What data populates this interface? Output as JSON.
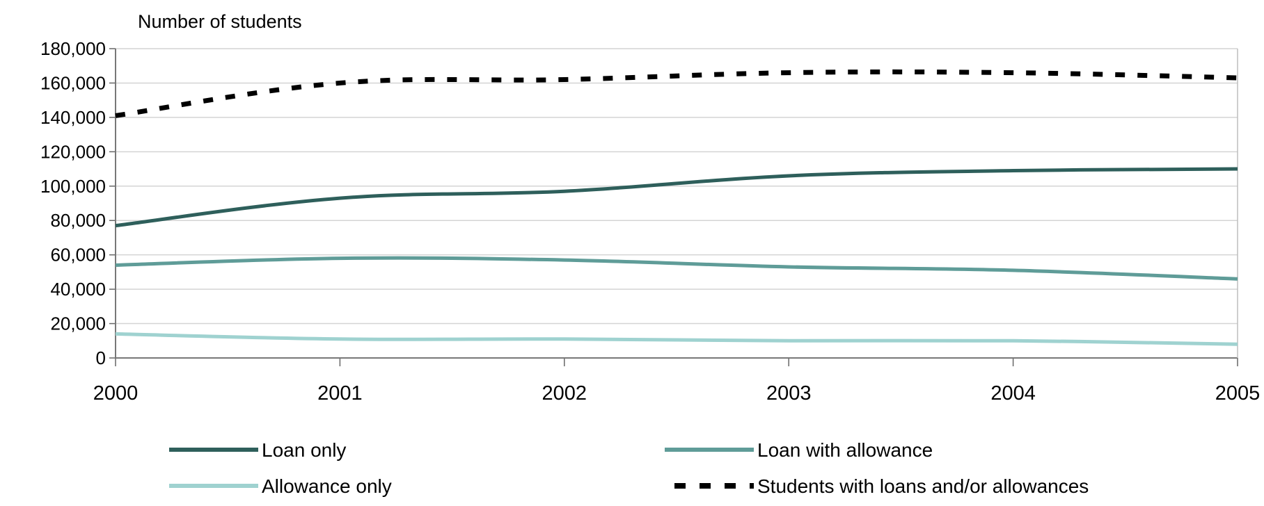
{
  "chart_data": {
    "type": "line",
    "ylabel": "Number of students",
    "xlabel": "",
    "x": [
      2000,
      2001,
      2002,
      2003,
      2004,
      2005
    ],
    "y_ticks": [
      "0",
      "20,000",
      "40,000",
      "60,000",
      "80,000",
      "100,000",
      "120,000",
      "140,000",
      "160,000",
      "180,000"
    ],
    "ylim": [
      0,
      180000
    ],
    "xlim": [
      2000,
      2005
    ],
    "grid": "horizontal",
    "legend_position": "bottom",
    "series": [
      {
        "name": "Loan only",
        "color": "#2e5f5b",
        "style": "solid",
        "values": [
          77000,
          93000,
          97000,
          106000,
          109000,
          110000
        ]
      },
      {
        "name": "Loan with allowance",
        "color": "#5f9c98",
        "style": "solid",
        "values": [
          54000,
          58000,
          57000,
          53000,
          51000,
          46000
        ]
      },
      {
        "name": "Allowance only",
        "color": "#9fd2d0",
        "style": "solid",
        "values": [
          14000,
          11000,
          11000,
          10000,
          10000,
          8000
        ]
      },
      {
        "name": "Students with loans and/or allowances",
        "color": "#000000",
        "style": "dashed",
        "values": [
          141000,
          160000,
          162000,
          166000,
          166000,
          163000
        ]
      }
    ]
  }
}
